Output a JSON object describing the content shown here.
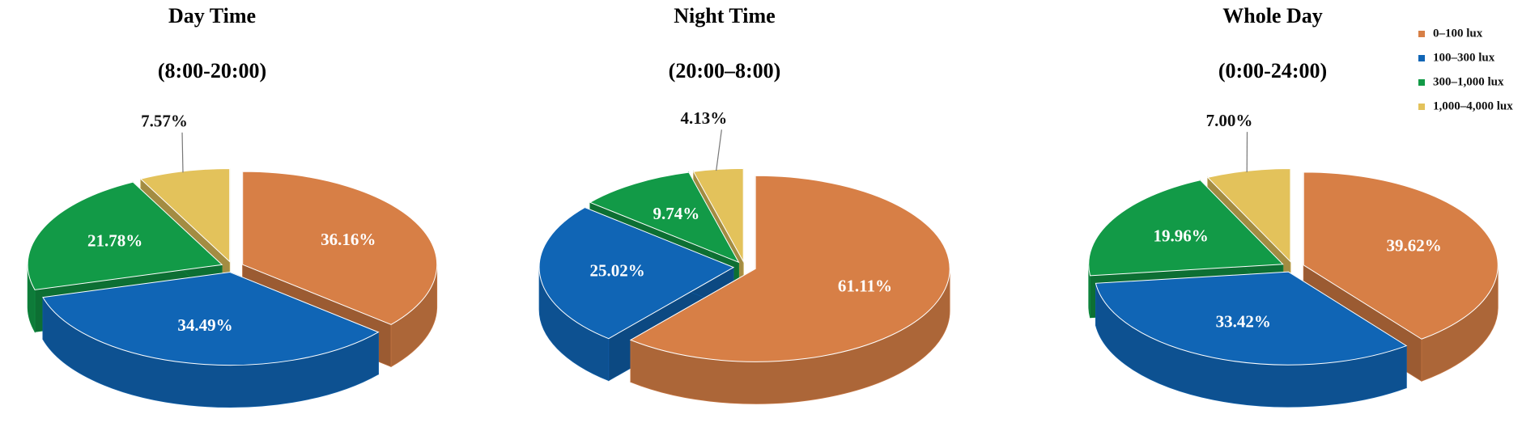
{
  "chart_data": [
    {
      "type": "pie",
      "title": "Day Time",
      "subtitle": "(8:00-20:00)",
      "values": [
        36.16,
        34.49,
        21.78,
        7.57
      ],
      "value_labels": [
        "36.16%",
        "34.49%",
        "21.78%",
        "7.57%"
      ],
      "colors": [
        "#d77f46",
        "#1065b5",
        "#129a47",
        "#e3c25b"
      ]
    },
    {
      "type": "pie",
      "title": "Night Time",
      "subtitle": "(20:00–8:00)",
      "values": [
        61.11,
        25.02,
        9.74,
        4.13
      ],
      "value_labels": [
        "61.11%",
        "25.02%",
        "9.74%",
        "4.13%"
      ],
      "colors": [
        "#d77f46",
        "#1065b5",
        "#129a47",
        "#e3c25b"
      ]
    },
    {
      "type": "pie",
      "title": "Whole Day",
      "subtitle": "(0:00-24:00)",
      "categories": [
        "0–100 lux",
        "100–300 lux",
        "300–1,000 lux",
        "1,000–4,000 lux"
      ],
      "values": [
        39.62,
        33.42,
        19.96,
        7.0
      ],
      "value_labels": [
        "39.62%",
        "33.42%",
        "19.96%",
        "7.00%"
      ],
      "colors": [
        "#d77f46",
        "#1065b5",
        "#129a47",
        "#e3c25b"
      ],
      "legend": "right"
    }
  ]
}
